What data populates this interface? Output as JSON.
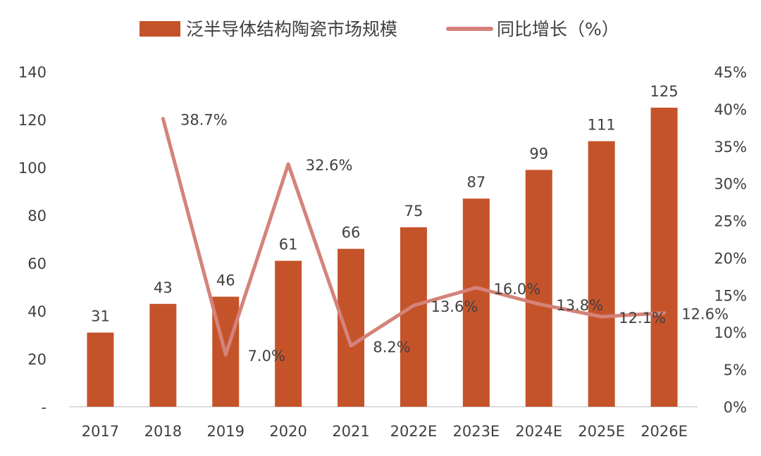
{
  "chart_data": {
    "type": "bar+line",
    "categories": [
      "2017",
      "2018",
      "2019",
      "2020",
      "2021",
      "2022E",
      "2023E",
      "2024E",
      "2025E",
      "2026E"
    ],
    "series": [
      {
        "name": "泛半导体结构陶瓷市场规模",
        "type": "bar",
        "axis": "left",
        "color": "#C5532A",
        "values": [
          31,
          43,
          46,
          61,
          66,
          75,
          87,
          99,
          111,
          125
        ],
        "labels": [
          "31",
          "43",
          "46",
          "61",
          "66",
          "75",
          "87",
          "99",
          "111",
          "125"
        ]
      },
      {
        "name": "同比增长（%）",
        "type": "line",
        "axis": "right",
        "color": "#D4837A",
        "values": [
          null,
          38.7,
          7.0,
          32.6,
          8.2,
          13.6,
          16.0,
          13.8,
          12.1,
          12.6
        ],
        "labels": [
          "",
          "38.7%",
          "7.0%",
          "32.6%",
          "8.2%",
          "13.6%",
          "16.0%",
          "13.8%",
          "12.1%",
          "12.6%"
        ]
      }
    ],
    "left_axis": {
      "ylim": [
        0,
        140
      ],
      "ticks": [
        "-",
        "20",
        "40",
        "60",
        "80",
        "100",
        "120",
        "140"
      ]
    },
    "right_axis": {
      "ylim": [
        0,
        45
      ],
      "ticks": [
        "0%",
        "5%",
        "10%",
        "15%",
        "20%",
        "25%",
        "30%",
        "35%",
        "40%",
        "45%"
      ]
    },
    "legend": "top",
    "grid": false
  }
}
